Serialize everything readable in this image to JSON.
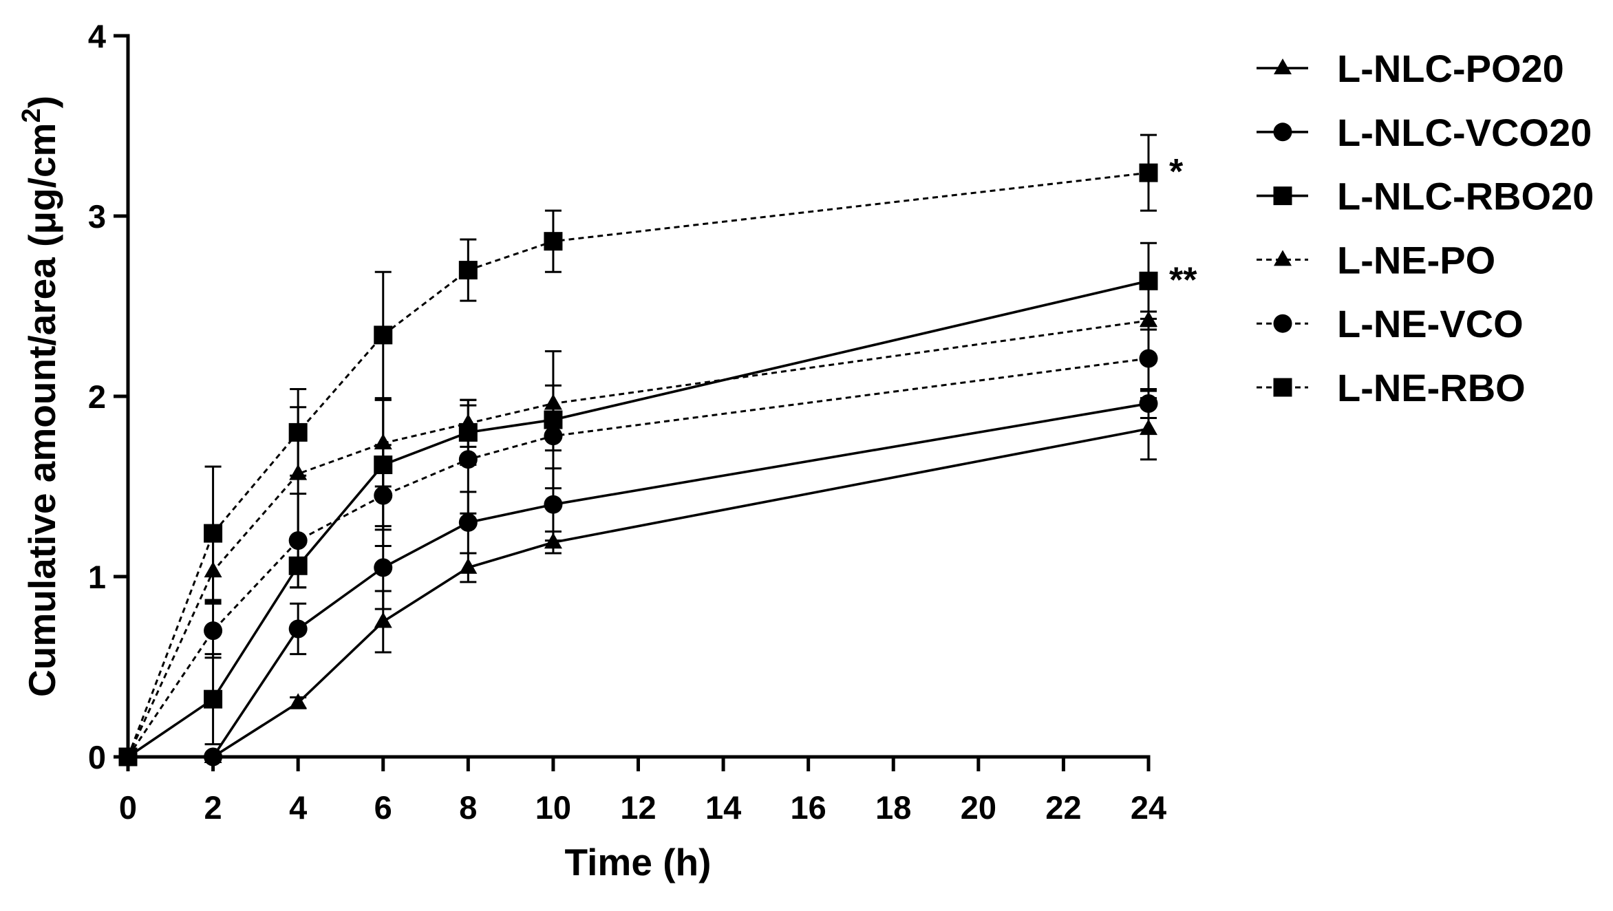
{
  "chart_data": {
    "type": "line",
    "title": "",
    "xlabel": "Time (h)",
    "ylabel": {
      "text": "Cumulative amount/area (μg/cm",
      "sup": "2",
      "close": ")"
    },
    "xlim": [
      0,
      24
    ],
    "ylim": [
      0,
      4
    ],
    "x_ticks": [
      0,
      2,
      4,
      6,
      8,
      10,
      12,
      14,
      16,
      18,
      20,
      22,
      24
    ],
    "y_ticks": [
      0,
      1,
      2,
      3,
      4
    ],
    "grid": false,
    "legend_position": "right",
    "colors": {
      "ink": "#000000",
      "background": "#ffffff"
    },
    "x": [
      0,
      2,
      4,
      6,
      8,
      10,
      24
    ],
    "series": [
      {
        "name": "L-NLC-PO20",
        "dashed": false,
        "marker": "triangle",
        "values": [
          0,
          0,
          0.3,
          0.75,
          1.05,
          1.19,
          1.82
        ],
        "errors": [
          0,
          0,
          0.03,
          0.17,
          0.08,
          0.06,
          0.17
        ]
      },
      {
        "name": "L-NLC-VCO20",
        "dashed": false,
        "marker": "circle",
        "values": [
          0,
          0,
          0.71,
          1.05,
          1.3,
          1.4,
          1.96
        ],
        "errors": [
          0,
          0,
          0.14,
          0.23,
          0.17,
          0.2,
          0.08
        ]
      },
      {
        "name": "L-NLC-RBO20",
        "dashed": false,
        "marker": "square",
        "values": [
          0,
          0.32,
          1.06,
          1.62,
          1.8,
          1.87,
          2.64
        ],
        "errors": [
          0,
          0.25,
          0.12,
          0.36,
          0.18,
          0.38,
          0.21
        ]
      },
      {
        "name": "L-NE-PO",
        "dashed": true,
        "marker": "triangle",
        "values": [
          0,
          1.03,
          1.57,
          1.74,
          1.85,
          1.96,
          2.42
        ],
        "errors": [
          0,
          0.17,
          0.37,
          0.24,
          0.13,
          0.1,
          0.05
        ]
      },
      {
        "name": "L-NE-VCO",
        "dashed": true,
        "marker": "circle",
        "values": [
          0,
          0.7,
          1.2,
          1.45,
          1.65,
          1.78,
          2.21
        ],
        "errors": [
          0,
          0.15,
          0.26,
          0.28,
          0.3,
          0.08,
          0.18
        ]
      },
      {
        "name": "L-NE-RBO",
        "dashed": true,
        "marker": "square",
        "values": [
          0,
          1.24,
          1.8,
          2.34,
          2.7,
          2.86,
          3.24
        ],
        "errors": [
          0,
          0.37,
          0.24,
          0.35,
          0.17,
          0.17,
          0.21
        ]
      }
    ],
    "annotations": [
      {
        "text": "*",
        "x": 24,
        "y": 3.24
      },
      {
        "text": "**",
        "x": 24,
        "y": 2.64
      }
    ]
  }
}
